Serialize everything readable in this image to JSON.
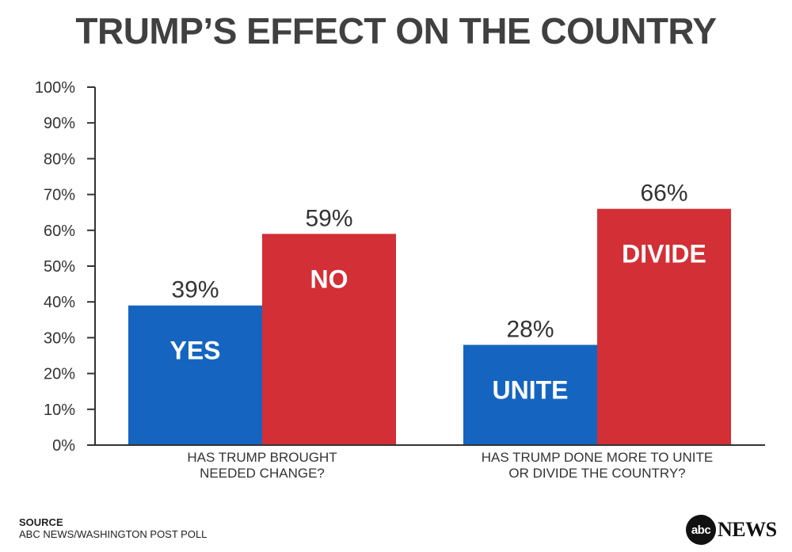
{
  "chart_data": {
    "type": "bar",
    "title": "TRUMP’S EFFECT ON THE COUNTRY",
    "ylim": [
      0,
      100
    ],
    "yticks": [
      "0%",
      "10%",
      "20%",
      "30%",
      "40%",
      "50%",
      "60%",
      "70%",
      "80%",
      "90%",
      "100%"
    ],
    "groups": [
      {
        "category": [
          "HAS TRUMP BROUGHT",
          "NEEDED CHANGE?"
        ],
        "bars": [
          {
            "label": "YES",
            "value": 39,
            "value_label": "39%",
            "color": "#1565c0"
          },
          {
            "label": "NO",
            "value": 59,
            "value_label": "59%",
            "color": "#d32f36"
          }
        ]
      },
      {
        "category": [
          "HAS TRUMP DONE MORE TO UNITE",
          "OR DIVIDE THE COUNTRY?"
        ],
        "bars": [
          {
            "label": "UNITE",
            "value": 28,
            "value_label": "28%",
            "color": "#1565c0"
          },
          {
            "label": "DIVIDE",
            "value": 66,
            "value_label": "66%",
            "color": "#d32f36"
          }
        ]
      }
    ],
    "grid": false,
    "legend": "none"
  },
  "source": {
    "heading": "SOURCE",
    "text": "ABC NEWS/WASHINGTON POST POLL"
  },
  "logo": {
    "mark": "abc",
    "word": "NEWS"
  }
}
